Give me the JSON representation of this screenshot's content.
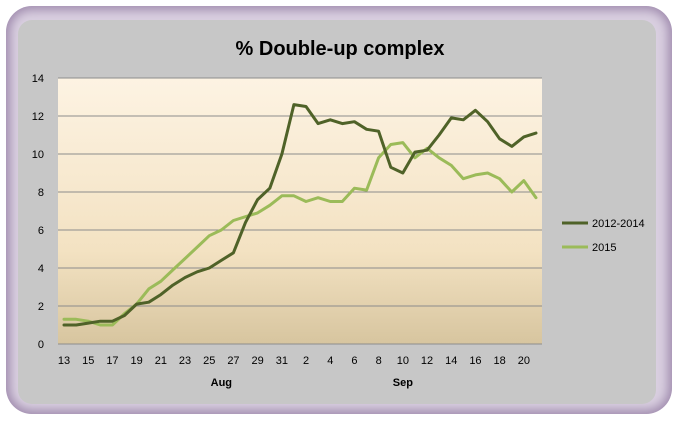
{
  "chart_data": {
    "type": "line",
    "title": "% Double-up complex",
    "xlabel": "",
    "ylabel": "",
    "ylim": [
      0,
      14
    ],
    "yticks": [
      0,
      2,
      4,
      6,
      8,
      10,
      12,
      14
    ],
    "grid": true,
    "legend_position": "right",
    "x_tick_labels": [
      "13",
      "15",
      "17",
      "19",
      "21",
      "23",
      "25",
      "27",
      "29",
      "31",
      "2",
      "4",
      "6",
      "8",
      "10",
      "12",
      "14",
      "16",
      "18",
      "20"
    ],
    "month_labels": [
      {
        "label": "Aug",
        "at": "26"
      },
      {
        "label": "Sep",
        "at": "9"
      }
    ],
    "x": [
      "13",
      "14",
      "15",
      "16",
      "17",
      "18",
      "19",
      "20",
      "21",
      "22",
      "23",
      "24",
      "25",
      "26",
      "27",
      "28",
      "29",
      "30",
      "31",
      "1",
      "2",
      "3",
      "4",
      "5",
      "6",
      "7",
      "8",
      "9",
      "10",
      "11",
      "12",
      "13",
      "14",
      "15",
      "16",
      "17",
      "18",
      "19",
      "20",
      "21"
    ],
    "series": [
      {
        "name": "2012-2014",
        "color": "#4f6228",
        "values": [
          1.0,
          1.0,
          1.1,
          1.2,
          1.2,
          1.5,
          2.1,
          2.2,
          2.6,
          3.1,
          3.5,
          3.8,
          4.0,
          4.4,
          4.8,
          6.4,
          7.6,
          8.2,
          10.0,
          12.6,
          12.5,
          11.6,
          11.8,
          11.6,
          11.7,
          11.3,
          11.2,
          9.3,
          9.0,
          10.1,
          10.2,
          11.0,
          11.9,
          11.8,
          12.3,
          11.7,
          10.8,
          10.4,
          10.9,
          11.1
        ]
      },
      {
        "name": "2015",
        "color": "#9bbb59",
        "values": [
          1.3,
          1.3,
          1.2,
          1.0,
          1.0,
          1.6,
          2.1,
          2.9,
          3.3,
          3.9,
          4.5,
          5.1,
          5.7,
          6.0,
          6.5,
          6.7,
          6.9,
          7.3,
          7.8,
          7.8,
          7.5,
          7.7,
          7.5,
          7.5,
          8.2,
          8.1,
          9.8,
          10.5,
          10.6,
          9.8,
          10.3,
          9.8,
          9.4,
          8.7,
          8.9,
          9.0,
          8.7,
          8.0,
          8.6,
          7.7
        ]
      }
    ]
  }
}
